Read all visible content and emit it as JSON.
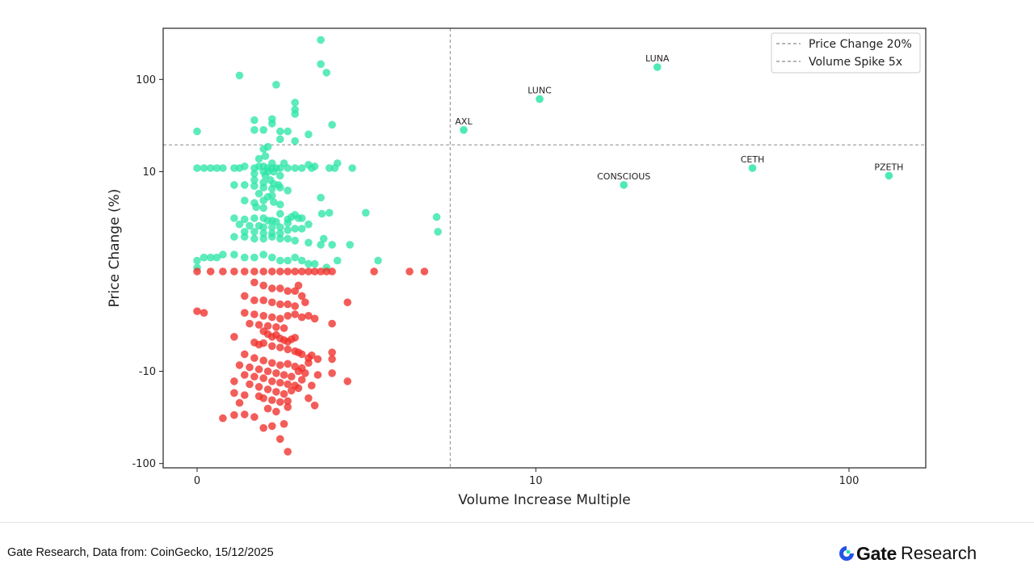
{
  "chart_data": {
    "type": "scatter",
    "xlabel": "Volume Increase Multiple",
    "ylabel": "Price Change (%)",
    "x_scale": "symlog",
    "y_scale": "symlog",
    "x_ticks": [
      0,
      10,
      100
    ],
    "x_tick_labels": [
      "0",
      "10",
      "100"
    ],
    "y_ticks": [
      100,
      10,
      -10,
      -100
    ],
    "y_tick_labels": [
      "100",
      "10",
      "-10",
      "-100"
    ],
    "xlim": [
      -0.2,
      160
    ],
    "ylim": [
      -120,
      320
    ],
    "grid": false,
    "legend_position": "top-right",
    "reference_lines": [
      {
        "label": "Price Change 20%",
        "axis": "y",
        "value": 20,
        "style": "dashed",
        "color": "#8c8c8c"
      },
      {
        "label": "Volume Spike 5x",
        "axis": "x",
        "value": 5,
        "style": "dashed",
        "color": "#8c8c8c"
      }
    ],
    "colors": {
      "positive": "#2ee6a6",
      "negative": "#f0302a"
    },
    "labeled_points": [
      {
        "label": "LUNA",
        "x": 25,
        "y": 135
      },
      {
        "label": "LUNC",
        "x": 10.3,
        "y": 62
      },
      {
        "label": "AXL",
        "x": 5.6,
        "y": 29
      },
      {
        "label": "CETH",
        "x": 50,
        "y": 11
      },
      {
        "label": "CONSCIOUS",
        "x": 19.5,
        "y": 7
      },
      {
        "label": "PZETH",
        "x": 133,
        "y": 9
      }
    ],
    "series": [
      {
        "color": "#2ee6a6",
        "points": [
          [
            1.4,
            260
          ],
          [
            1.4,
            145
          ],
          [
            1.5,
            118
          ],
          [
            0.35,
            110
          ],
          [
            0.75,
            88
          ],
          [
            1.0,
            57
          ],
          [
            1.0,
            48
          ],
          [
            1.0,
            43
          ],
          [
            0.5,
            37
          ],
          [
            0.7,
            38
          ],
          [
            0.7,
            34
          ],
          [
            1.6,
            33
          ],
          [
            0.5,
            29
          ],
          [
            0.6,
            29
          ],
          [
            0.8,
            28
          ],
          [
            0.9,
            28
          ],
          [
            1.2,
            26
          ],
          [
            0.0,
            28
          ],
          [
            0.8,
            23
          ],
          [
            1.0,
            22
          ],
          [
            0.6,
            18
          ],
          [
            0.65,
            19
          ],
          [
            0.55,
            14
          ],
          [
            0.62,
            15
          ],
          [
            0.7,
            12.5
          ],
          [
            0.85,
            12.5
          ],
          [
            1.2,
            12
          ],
          [
            1.7,
            12.5
          ],
          [
            2.0,
            11
          ],
          [
            0.0,
            11
          ],
          [
            0.05,
            11
          ],
          [
            0.1,
            11
          ],
          [
            0.15,
            11
          ],
          [
            0.2,
            11
          ],
          [
            0.3,
            11
          ],
          [
            0.35,
            11
          ],
          [
            0.4,
            11.5
          ],
          [
            0.5,
            11
          ],
          [
            0.55,
            11.5
          ],
          [
            0.6,
            11.5
          ],
          [
            0.65,
            11
          ],
          [
            0.7,
            11
          ],
          [
            0.75,
            11
          ],
          [
            0.8,
            11
          ],
          [
            0.9,
            11
          ],
          [
            1.0,
            11
          ],
          [
            1.1,
            11
          ],
          [
            1.25,
            11
          ],
          [
            1.3,
            11.5
          ],
          [
            1.55,
            11
          ],
          [
            1.65,
            11
          ],
          [
            0.6,
            10
          ],
          [
            0.65,
            10
          ],
          [
            0.72,
            10
          ],
          [
            0.5,
            9.5
          ],
          [
            0.62,
            9
          ],
          [
            0.8,
            9
          ],
          [
            0.68,
            8
          ],
          [
            0.5,
            8
          ],
          [
            0.6,
            7.5
          ],
          [
            0.72,
            7.2
          ],
          [
            0.78,
            7
          ],
          [
            0.3,
            7
          ],
          [
            0.4,
            7
          ],
          [
            0.5,
            6.8
          ],
          [
            0.6,
            6.5
          ],
          [
            0.7,
            6.3
          ],
          [
            0.8,
            6.5
          ],
          [
            0.9,
            6
          ],
          [
            1.4,
            4.9
          ],
          [
            0.55,
            5.5
          ],
          [
            0.65,
            5
          ],
          [
            0.7,
            5.2
          ],
          [
            0.4,
            4.5
          ],
          [
            0.5,
            4.2
          ],
          [
            0.6,
            4.5
          ],
          [
            0.72,
            4.3
          ],
          [
            0.8,
            4
          ],
          [
            0.52,
            3.7
          ],
          [
            0.6,
            3.6
          ],
          [
            1.42,
            3
          ],
          [
            1.55,
            3.1
          ],
          [
            2.3,
            3.1
          ],
          [
            0.8,
            3
          ],
          [
            0.9,
            2.5
          ],
          [
            0.95,
            2.7
          ],
          [
            1.0,
            2.9
          ],
          [
            1.05,
            2.6
          ],
          [
            1.1,
            2.6
          ],
          [
            0.3,
            2.6
          ],
          [
            0.4,
            2.5
          ],
          [
            0.5,
            2.6
          ],
          [
            0.6,
            2.6
          ],
          [
            0.65,
            2.4
          ],
          [
            0.7,
            2.4
          ],
          [
            0.75,
            2.3
          ],
          [
            0.9,
            2.2
          ],
          [
            1.2,
            2.1
          ],
          [
            0.35,
            2.1
          ],
          [
            0.45,
            2.0
          ],
          [
            0.55,
            2.0
          ],
          [
            0.6,
            1.9
          ],
          [
            0.7,
            1.9
          ],
          [
            0.8,
            1.9
          ],
          [
            0.9,
            1.7
          ],
          [
            1.0,
            1.8
          ],
          [
            1.1,
            1.8
          ],
          [
            0.4,
            1.6
          ],
          [
            0.5,
            1.6
          ],
          [
            0.6,
            1.5
          ],
          [
            0.7,
            1.5
          ],
          [
            0.8,
            1.5
          ],
          [
            0.3,
            1.3
          ],
          [
            0.4,
            1.3
          ],
          [
            0.5,
            1.2
          ],
          [
            0.6,
            1.2
          ],
          [
            0.7,
            1.3
          ],
          [
            0.8,
            1.2
          ],
          [
            0.9,
            1.2
          ],
          [
            1.0,
            1.1
          ],
          [
            1.2,
            1.0
          ],
          [
            1.4,
            0.9
          ],
          [
            1.6,
            0.9
          ],
          [
            1.95,
            0.9
          ],
          [
            1.45,
            1.2
          ],
          [
            4.5,
            1.6
          ],
          [
            4.45,
            2.7
          ],
          [
            0.05,
            0.4
          ],
          [
            0.1,
            0.4
          ],
          [
            0.15,
            0.4
          ],
          [
            0.2,
            0.5
          ],
          [
            0.3,
            0.5
          ],
          [
            0.4,
            0.4
          ],
          [
            0.5,
            0.4
          ],
          [
            0.6,
            0.5
          ],
          [
            0.7,
            0.4
          ],
          [
            0.8,
            0.3
          ],
          [
            0.9,
            0.3
          ],
          [
            1.0,
            0.4
          ],
          [
            1.1,
            0.3
          ],
          [
            1.2,
            0.2
          ],
          [
            1.3,
            0.2
          ],
          [
            1.5,
            0.1
          ],
          [
            0.0,
            0.3
          ],
          [
            0.0,
            0.1
          ],
          [
            2.6,
            0.3
          ],
          [
            1.7,
            0.3
          ]
        ]
      },
      {
        "color": "#f0302a",
        "points": [
          [
            0.0,
            0.0
          ],
          [
            0.1,
            0.0
          ],
          [
            0.2,
            0.0
          ],
          [
            0.3,
            0.0
          ],
          [
            0.4,
            0.0
          ],
          [
            0.5,
            0.0
          ],
          [
            0.6,
            0.0
          ],
          [
            0.7,
            0.0
          ],
          [
            0.8,
            0.0
          ],
          [
            0.9,
            0.0
          ],
          [
            1.0,
            0.0
          ],
          [
            1.1,
            0.0
          ],
          [
            1.2,
            0.0
          ],
          [
            1.3,
            0.0
          ],
          [
            1.4,
            0.0
          ],
          [
            1.5,
            0.0
          ],
          [
            1.6,
            0.0
          ],
          [
            2.5,
            0.0
          ],
          [
            3.5,
            0.0
          ],
          [
            4.0,
            0.0
          ],
          [
            0.5,
            -0.3
          ],
          [
            0.6,
            -0.4
          ],
          [
            0.7,
            -0.5
          ],
          [
            0.8,
            -0.5
          ],
          [
            0.9,
            -0.6
          ],
          [
            1.0,
            -0.6
          ],
          [
            1.05,
            -0.4
          ],
          [
            1.1,
            -0.8
          ],
          [
            0.4,
            -0.8
          ],
          [
            0.5,
            -1.0
          ],
          [
            0.6,
            -1.0
          ],
          [
            0.7,
            -1.1
          ],
          [
            0.8,
            -1.2
          ],
          [
            0.9,
            -1.2
          ],
          [
            1.0,
            -1.3
          ],
          [
            1.15,
            -1.1
          ],
          [
            1.9,
            -1.1
          ],
          [
            0.0,
            -1.6
          ],
          [
            0.05,
            -1.7
          ],
          [
            0.4,
            -1.7
          ],
          [
            0.5,
            -1.8
          ],
          [
            0.6,
            -1.9
          ],
          [
            0.7,
            -2.0
          ],
          [
            0.8,
            -2.1
          ],
          [
            0.9,
            -1.9
          ],
          [
            1.0,
            -1.8
          ],
          [
            1.1,
            -2.0
          ],
          [
            1.2,
            -1.9
          ],
          [
            1.3,
            -2.1
          ],
          [
            0.45,
            -2.5
          ],
          [
            0.55,
            -2.6
          ],
          [
            0.65,
            -2.7
          ],
          [
            0.75,
            -2.8
          ],
          [
            0.85,
            -2.9
          ],
          [
            1.6,
            -2.5
          ],
          [
            0.6,
            -3.2
          ],
          [
            0.65,
            -3.5
          ],
          [
            0.7,
            -3.8
          ],
          [
            0.75,
            -3.6
          ],
          [
            0.8,
            -4.0
          ],
          [
            0.85,
            -4.2
          ],
          [
            0.9,
            -4.4
          ],
          [
            0.95,
            -4.1
          ],
          [
            1.0,
            -3.9
          ],
          [
            0.3,
            -3.8
          ],
          [
            0.5,
            -4.5
          ],
          [
            0.55,
            -4.8
          ],
          [
            0.6,
            -4.6
          ],
          [
            0.7,
            -5.0
          ],
          [
            0.8,
            -5.2
          ],
          [
            0.9,
            -5.5
          ],
          [
            1.0,
            -5.8
          ],
          [
            1.05,
            -6.0
          ],
          [
            1.1,
            -6.3
          ],
          [
            1.2,
            -7.0
          ],
          [
            1.25,
            -6.5
          ],
          [
            1.35,
            -7.2
          ],
          [
            1.6,
            -6.0
          ],
          [
            0.4,
            -6.3
          ],
          [
            0.5,
            -7.0
          ],
          [
            0.6,
            -7.5
          ],
          [
            0.7,
            -8.0
          ],
          [
            0.8,
            -8.5
          ],
          [
            0.9,
            -8.2
          ],
          [
            1.0,
            -8.8
          ],
          [
            1.1,
            -9.2
          ],
          [
            1.2,
            -8.0
          ],
          [
            1.6,
            -7.2
          ],
          [
            0.35,
            -8.5
          ],
          [
            0.45,
            -9.0
          ],
          [
            0.55,
            -9.5
          ],
          [
            0.65,
            -10.0
          ],
          [
            0.75,
            -10.5
          ],
          [
            0.85,
            -11.0
          ],
          [
            0.95,
            -11.5
          ],
          [
            1.05,
            -10.0
          ],
          [
            1.15,
            -10.5
          ],
          [
            0.4,
            -11.0
          ],
          [
            0.5,
            -11.5
          ],
          [
            0.6,
            -12.0
          ],
          [
            0.7,
            -13.0
          ],
          [
            0.8,
            -13.5
          ],
          [
            0.9,
            -14.0
          ],
          [
            1.0,
            -14.5
          ],
          [
            1.1,
            -12.5
          ],
          [
            1.35,
            -11.0
          ],
          [
            1.6,
            -10.5
          ],
          [
            0.3,
            -13.0
          ],
          [
            0.45,
            -14.0
          ],
          [
            0.55,
            -15.0
          ],
          [
            0.65,
            -16.0
          ],
          [
            0.75,
            -17.0
          ],
          [
            0.85,
            -18.0
          ],
          [
            0.95,
            -16.5
          ],
          [
            1.05,
            -15.5
          ],
          [
            1.25,
            -14.5
          ],
          [
            1.9,
            -13.0
          ],
          [
            0.3,
            -17.5
          ],
          [
            0.4,
            -18.5
          ],
          [
            0.55,
            -19.0
          ],
          [
            0.6,
            -20.0
          ],
          [
            0.7,
            -21.0
          ],
          [
            0.8,
            -22.0
          ],
          [
            0.9,
            -21.5
          ],
          [
            1.2,
            -20.0
          ],
          [
            0.35,
            -22.5
          ],
          [
            0.65,
            -26.0
          ],
          [
            0.75,
            -28.0
          ],
          [
            0.9,
            -25.0
          ],
          [
            1.3,
            -24.0
          ],
          [
            0.4,
            -30.0
          ],
          [
            0.5,
            -32.0
          ],
          [
            0.2,
            -33.0
          ],
          [
            0.3,
            -30.5
          ],
          [
            0.7,
            -40.0
          ],
          [
            0.85,
            -38.0
          ],
          [
            0.6,
            -42.0
          ],
          [
            0.8,
            -55.0
          ],
          [
            0.9,
            -75.0
          ]
        ]
      }
    ]
  },
  "footer": {
    "source": "Gate Research, Data from: CoinGecko, 15/12/2025",
    "brand_gate": "Gate",
    "brand_research": "Research"
  }
}
